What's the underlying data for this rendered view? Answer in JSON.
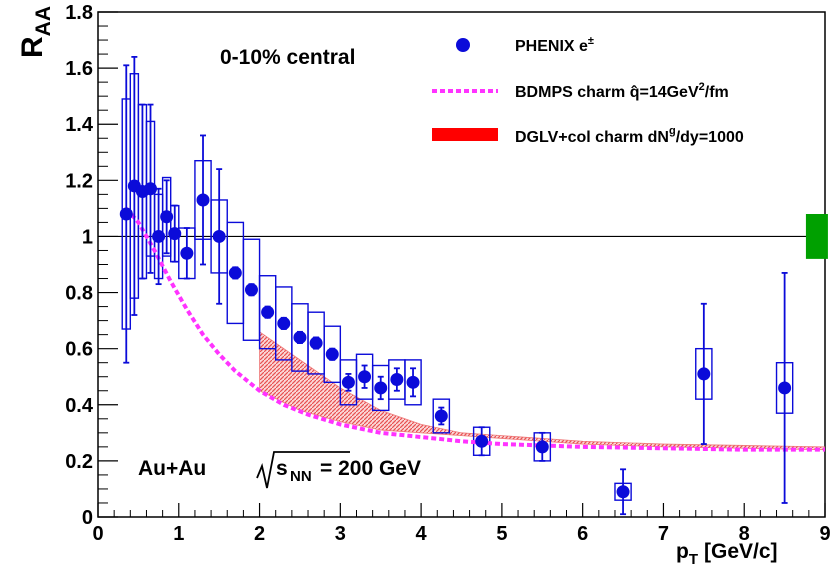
{
  "chart_data": {
    "type": "scatter",
    "title": "",
    "xlabel": "p",
    "xlabel_sub": "T",
    "xlabel_units": "[GeV/c]",
    "ylabel": "R",
    "ylabel_sub": "AA",
    "xlim": [
      0,
      9
    ],
    "ylim": [
      0,
      1.8
    ],
    "x_ticks": [
      0,
      1,
      2,
      3,
      4,
      5,
      6,
      7,
      8,
      9
    ],
    "y_ticks": [
      0,
      0.2,
      0.4,
      0.6,
      0.8,
      1,
      1.2,
      1.4,
      1.6,
      1.8
    ],
    "x_tick_labels": [
      "0",
      "1",
      "2",
      "3",
      "4",
      "5",
      "6",
      "7",
      "8",
      "9"
    ],
    "y_tick_labels": [
      "0",
      "0.2",
      "0.4",
      "0.6",
      "0.8",
      "1",
      "1.2",
      "1.4",
      "1.6",
      "1.8"
    ],
    "reference_line": 1,
    "annotations": {
      "centrality": "0-10% central",
      "system": "Au+Au",
      "sqrt_s": "s",
      "sqrt_s_sub": "NN",
      "energy": "= 200 GeV"
    },
    "legend": {
      "placement": "top-right",
      "entries": [
        {
          "text": "PHENIX e",
          "sup": "±"
        },
        {
          "text": "BDMPS charm q̂=14GeV",
          "sup": "2",
          "tail": "/fm"
        },
        {
          "text": "DGLV+col charm dN",
          "sup": "g",
          "tail": "/dy=1000"
        }
      ]
    },
    "colors": {
      "data": "#0b0bd9",
      "bdmps": "#ff33ff",
      "dglv_band": "#f06464",
      "norm_box": "#00a000",
      "refline": "#000000"
    },
    "series": [
      {
        "kind": "points",
        "points": [
          {
            "x": 0.35,
            "y": 1.08,
            "err": 0.53,
            "sys": 0.41
          },
          {
            "x": 0.45,
            "y": 1.18,
            "err": 0.46,
            "sys": 0.4
          },
          {
            "x": 0.55,
            "y": 1.16,
            "err": 0.31,
            "sys": 0.31
          },
          {
            "x": 0.65,
            "y": 1.17,
            "err": 0.3,
            "sys": 0.24
          },
          {
            "x": 0.75,
            "y": 1.0,
            "err": 0.17,
            "sys": 0.15
          },
          {
            "x": 0.85,
            "y": 1.07,
            "err": 0.13,
            "sys": 0.14
          },
          {
            "x": 0.95,
            "y": 1.01,
            "err": 0.1,
            "sys": 0.1
          },
          {
            "x": 1.1,
            "y": 0.94,
            "err": 0.09,
            "sys": 0.09
          },
          {
            "x": 1.3,
            "y": 1.13,
            "err": 0.23,
            "sys": 0.14
          },
          {
            "x": 1.5,
            "y": 1.0,
            "err": 0.24,
            "sys": 0.13
          },
          {
            "x": 1.7,
            "y": 0.87,
            "err": 0.02,
            "sys": 0.18
          },
          {
            "x": 1.9,
            "y": 0.81,
            "err": 0.02,
            "sys": 0.18
          },
          {
            "x": 2.1,
            "y": 0.73,
            "err": 0.02,
            "sys": 0.13
          },
          {
            "x": 2.3,
            "y": 0.69,
            "err": 0.02,
            "sys": 0.13
          },
          {
            "x": 2.5,
            "y": 0.64,
            "err": 0.02,
            "sys": 0.12
          },
          {
            "x": 2.7,
            "y": 0.62,
            "err": 0.02,
            "sys": 0.11
          },
          {
            "x": 2.9,
            "y": 0.58,
            "err": 0.02,
            "sys": 0.1
          },
          {
            "x": 3.1,
            "y": 0.48,
            "err": 0.03,
            "sys": 0.08
          },
          {
            "x": 3.3,
            "y": 0.5,
            "err": 0.04,
            "sys": 0.08
          },
          {
            "x": 3.5,
            "y": 0.46,
            "err": 0.04,
            "sys": 0.08
          },
          {
            "x": 3.7,
            "y": 0.49,
            "err": 0.04,
            "sys": 0.07
          },
          {
            "x": 3.9,
            "y": 0.48,
            "err": 0.05,
            "sys": 0.08
          },
          {
            "x": 4.25,
            "y": 0.36,
            "err": 0.03,
            "sys": 0.06
          },
          {
            "x": 4.75,
            "y": 0.27,
            "err": 0.05,
            "sys": 0.05
          },
          {
            "x": 5.5,
            "y": 0.25,
            "err": 0.05,
            "sys": 0.05
          },
          {
            "x": 6.5,
            "y": 0.09,
            "err": 0.08,
            "sys": 0.03
          },
          {
            "x": 7.5,
            "y": 0.51,
            "err": 0.25,
            "sys": 0.09
          },
          {
            "x": 8.5,
            "y": 0.46,
            "err": 0.41,
            "sys": 0.09
          }
        ]
      },
      {
        "kind": "band",
        "x": [
          2.0,
          2.5,
          3.0,
          3.5,
          4.0,
          4.5,
          5.0,
          5.5,
          6.0,
          7.0,
          8.0,
          9.0
        ],
        "lower": [
          0.45,
          0.38,
          0.34,
          0.31,
          0.3,
          0.29,
          0.28,
          0.27,
          0.26,
          0.25,
          0.245,
          0.24
        ],
        "upper": [
          0.66,
          0.56,
          0.46,
          0.38,
          0.33,
          0.3,
          0.29,
          0.28,
          0.27,
          0.26,
          0.255,
          0.25
        ]
      },
      {
        "kind": "curve",
        "x": [
          0.35,
          0.5,
          0.7,
          0.9,
          1.1,
          1.3,
          1.5,
          1.7,
          2.0,
          2.3,
          2.6,
          3.0,
          3.5,
          4.0,
          4.5,
          5.0,
          6.0,
          7.0,
          8.0,
          9.0
        ],
        "y": [
          1.1,
          1.05,
          0.95,
          0.84,
          0.74,
          0.65,
          0.58,
          0.52,
          0.45,
          0.4,
          0.365,
          0.33,
          0.3,
          0.285,
          0.27,
          0.26,
          0.25,
          0.245,
          0.24,
          0.24
        ]
      },
      {
        "kind": "normalization",
        "x": 8.9,
        "y_low": 0.92,
        "y_high": 1.08
      }
    ]
  }
}
